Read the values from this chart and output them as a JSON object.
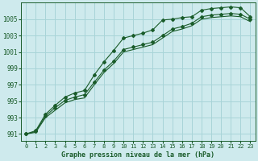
{
  "title": "Graphe pression niveau de la mer (hPa)",
  "bg_color": "#ceeaed",
  "grid_color": "#a8d4d8",
  "line_color": "#1a5c2a",
  "x_ticks": [
    0,
    1,
    2,
    3,
    4,
    5,
    6,
    7,
    8,
    9,
    10,
    11,
    12,
    13,
    14,
    15,
    16,
    17,
    18,
    19,
    20,
    21,
    22,
    23
  ],
  "y_ticks": [
    991,
    993,
    995,
    997,
    999,
    1001,
    1003,
    1005
  ],
  "ylim": [
    990.2,
    1007.0
  ],
  "xlim": [
    -0.5,
    23.5
  ],
  "series1_x": [
    0,
    1,
    2,
    3,
    4,
    5,
    6,
    7,
    8,
    9,
    10,
    11,
    12,
    13,
    14,
    15,
    16,
    17,
    18,
    19,
    20,
    21,
    22,
    23
  ],
  "series1_y": [
    991.0,
    991.4,
    993.4,
    994.5,
    995.5,
    996.0,
    996.3,
    998.2,
    999.8,
    1001.2,
    1002.7,
    1003.0,
    1003.3,
    1003.7,
    1004.9,
    1005.0,
    1005.2,
    1005.3,
    1006.1,
    1006.3,
    1006.4,
    1006.5,
    1006.4,
    1005.3
  ],
  "series2_x": [
    0,
    1,
    2,
    3,
    4,
    5,
    6,
    7,
    8,
    9,
    10,
    11,
    12,
    13,
    14,
    15,
    16,
    17,
    18,
    19,
    20,
    21,
    22,
    23
  ],
  "series2_y": [
    991.0,
    991.3,
    993.2,
    994.2,
    995.1,
    995.5,
    995.8,
    997.3,
    998.8,
    999.9,
    1001.3,
    1001.6,
    1001.9,
    1002.2,
    1003.0,
    1003.8,
    1004.1,
    1004.5,
    1005.3,
    1005.5,
    1005.6,
    1005.7,
    1005.6,
    1005.0
  ],
  "series3_x": [
    0,
    1,
    2,
    3,
    4,
    5,
    6,
    7,
    8,
    9,
    10,
    11,
    12,
    13,
    14,
    15,
    16,
    17,
    18,
    19,
    20,
    21,
    22,
    23
  ],
  "series3_y": [
    991.0,
    991.2,
    993.0,
    993.9,
    994.8,
    995.2,
    995.4,
    997.0,
    998.5,
    999.6,
    1001.0,
    1001.3,
    1001.6,
    1001.9,
    1002.7,
    1003.5,
    1003.8,
    1004.2,
    1005.0,
    1005.2,
    1005.3,
    1005.4,
    1005.3,
    1004.7
  ]
}
